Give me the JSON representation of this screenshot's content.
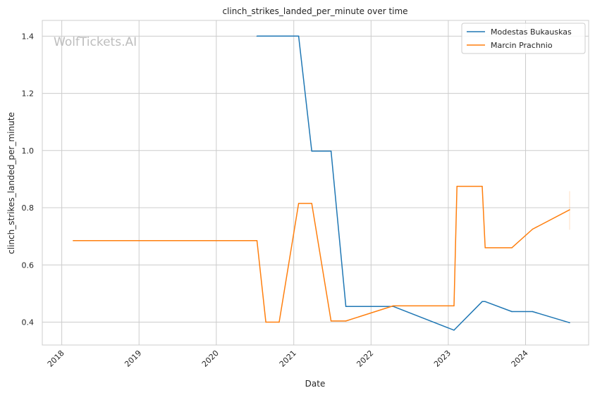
{
  "chart_data": {
    "type": "line",
    "title": "clinch_strikes_landed_per_minute over time",
    "xlabel": "Date",
    "ylabel": "clinch_strikes_landed_per_minute",
    "watermark": "WolfTickets.AI",
    "grid": true,
    "legend_position": "top-right",
    "x_ticks": [
      "2018",
      "2019",
      "2020",
      "2021",
      "2022",
      "2023",
      "2024"
    ],
    "y_ticks": [
      "0.4",
      "0.6",
      "0.8",
      "1.0",
      "1.2",
      "1.4"
    ],
    "xlim": [
      "2017-10-01",
      "2024-10-25"
    ],
    "ylim": [
      0.32,
      1.455
    ],
    "series": [
      {
        "name": "Modestas Bukauskas",
        "color": "#1f77b4",
        "points": [
          [
            "2020-07-11",
            1.4
          ],
          [
            "2021-01-24",
            1.4
          ],
          [
            "2021-03-27",
            0.998
          ],
          [
            "2021-06-26",
            0.998
          ],
          [
            "2021-09-04",
            0.455
          ],
          [
            "2022-04-16",
            0.455
          ],
          [
            "2023-01-28",
            0.372
          ],
          [
            "2023-06-10",
            0.472
          ],
          [
            "2023-06-24",
            0.472
          ],
          [
            "2023-10-28",
            0.437
          ],
          [
            "2024-02-03",
            0.437
          ],
          [
            "2024-07-27",
            0.398
          ]
        ]
      },
      {
        "name": "Marcin Prachnio",
        "color": "#ff7f0e",
        "points": [
          [
            "2018-02-24",
            0.685
          ],
          [
            "2020-07-11",
            0.685
          ],
          [
            "2020-08-22",
            0.4
          ],
          [
            "2020-10-24",
            0.4
          ],
          [
            "2021-01-24",
            0.815
          ],
          [
            "2021-03-27",
            0.815
          ],
          [
            "2021-06-26",
            0.404
          ],
          [
            "2021-09-04",
            0.404
          ],
          [
            "2022-04-16",
            0.457
          ],
          [
            "2023-01-28",
            0.457
          ],
          [
            "2023-02-11",
            0.875
          ],
          [
            "2023-06-10",
            0.875
          ],
          [
            "2023-06-24",
            0.66
          ],
          [
            "2023-10-28",
            0.66
          ],
          [
            "2024-02-03",
            0.725
          ],
          [
            "2024-07-27",
            0.793
          ]
        ]
      }
    ]
  }
}
